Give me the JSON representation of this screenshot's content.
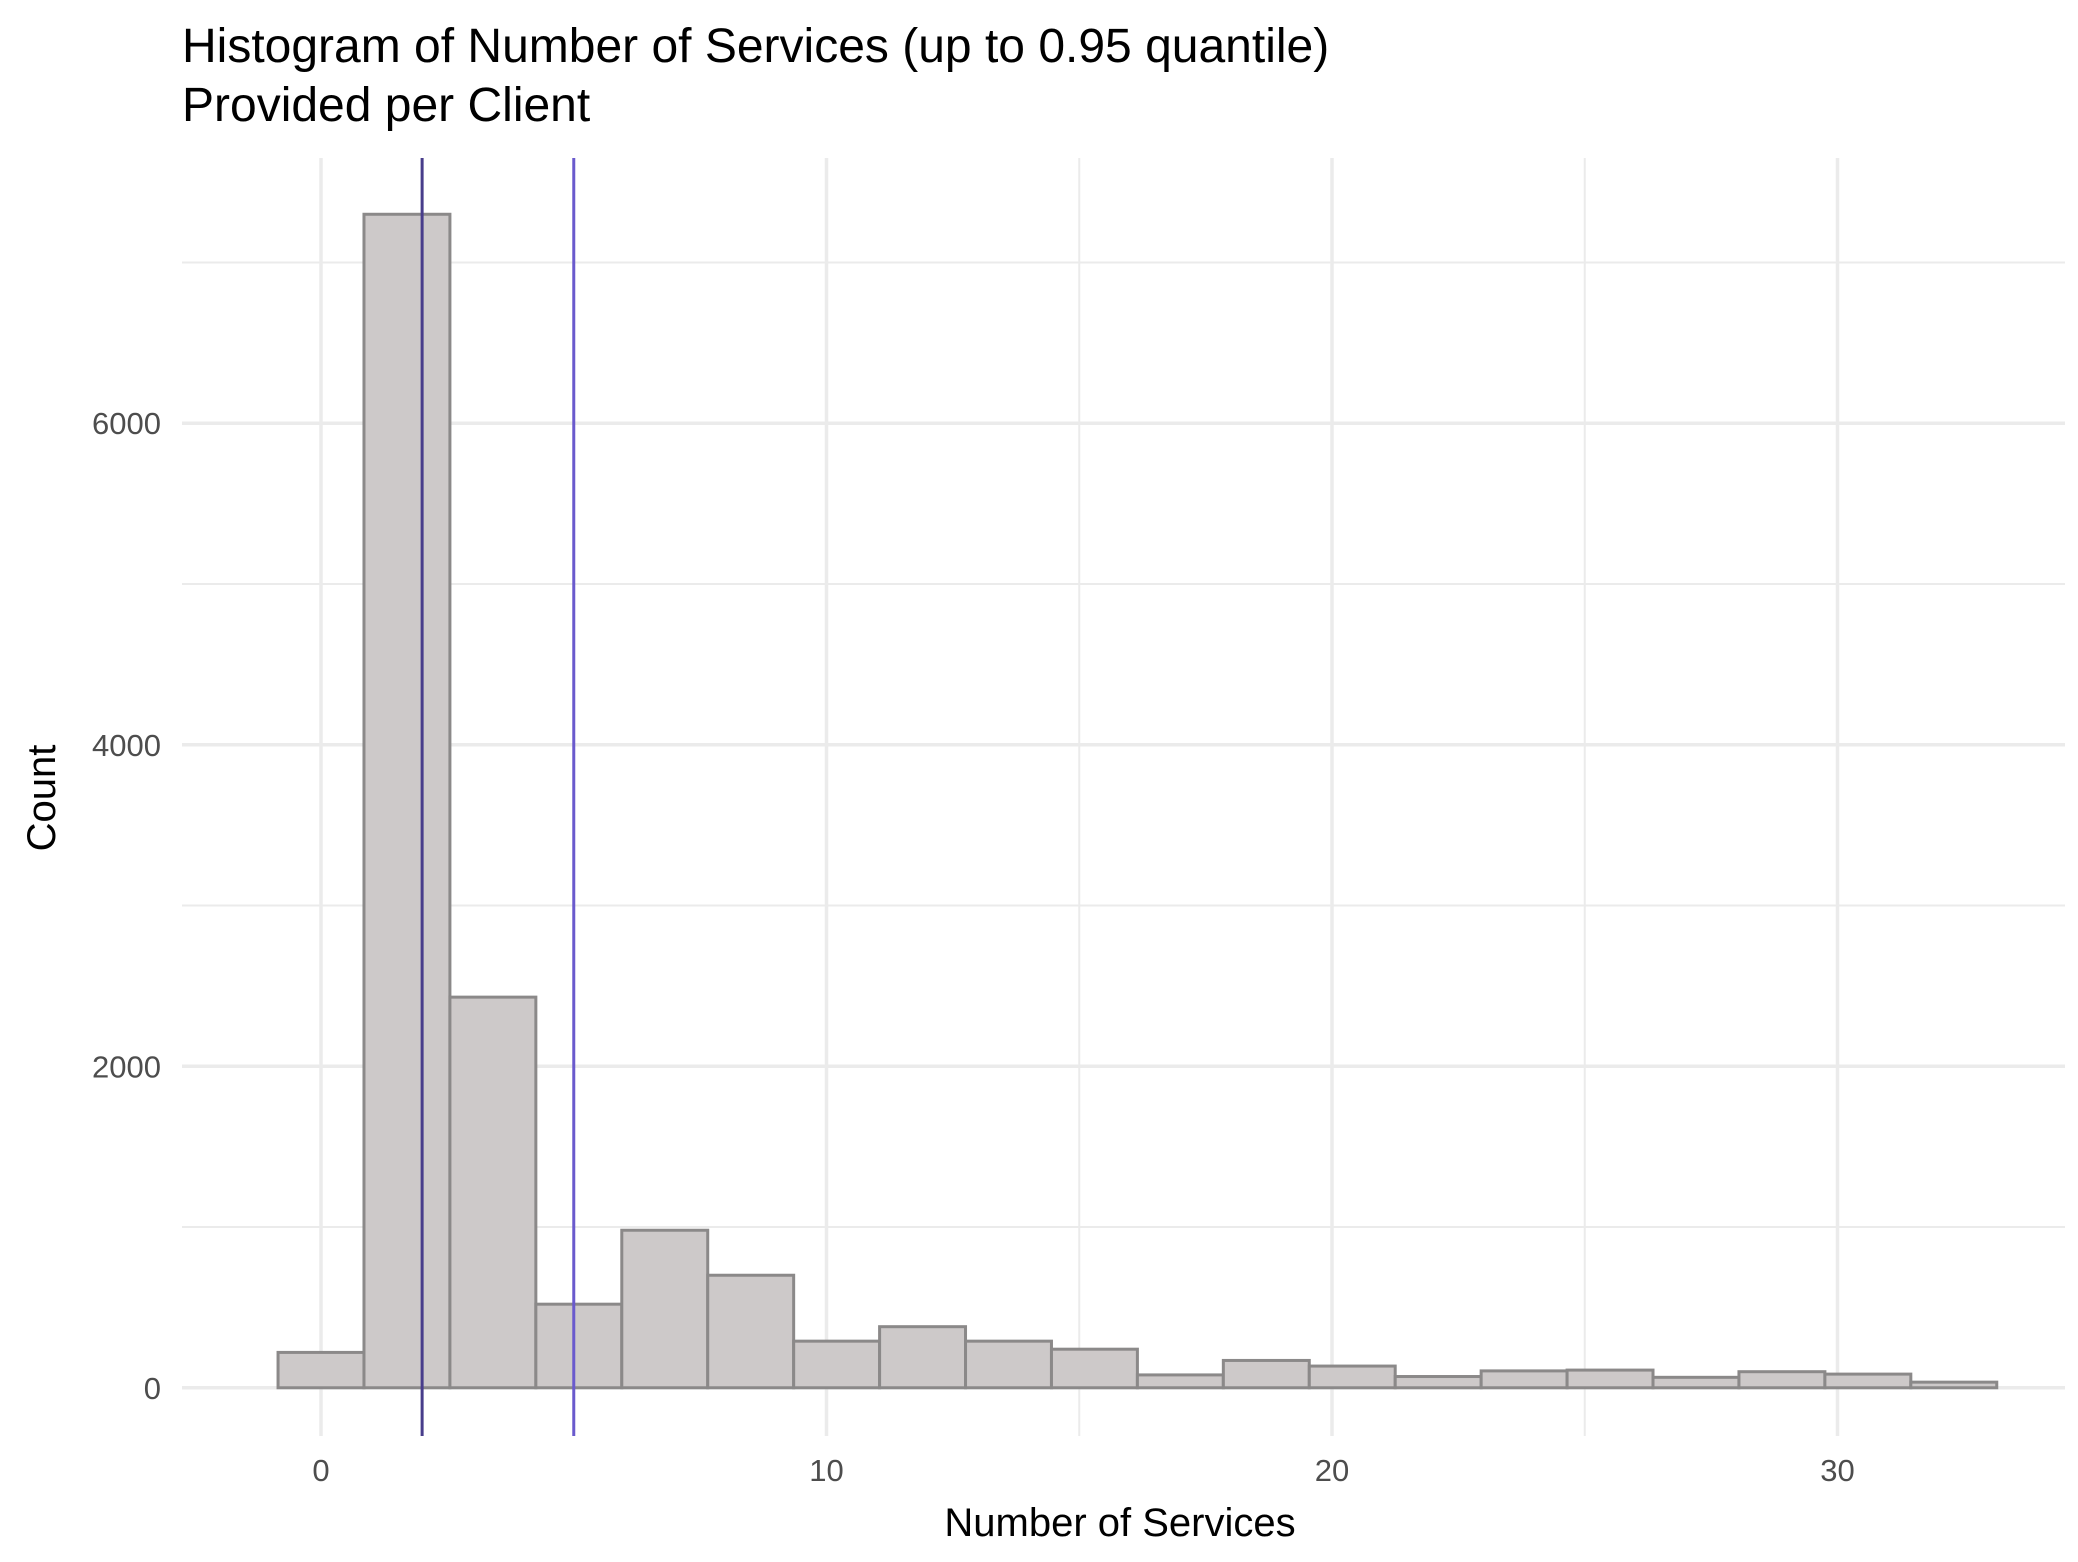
{
  "chart_data": {
    "type": "bar",
    "title": "Histogram of Number of Services (up to 0.95 quantile)",
    "subtitle": "Provided per Client",
    "xlabel": "Number of Services",
    "ylabel": "Count",
    "xlim": [
      -2.75,
      34.5
    ],
    "ylim": [
      -300,
      7650
    ],
    "x_ticks": [
      0,
      10,
      20,
      30
    ],
    "x_tick_labels": [
      "0",
      "10",
      "20",
      "30"
    ],
    "x_minor_ticks": [
      5,
      15,
      25
    ],
    "y_ticks": [
      0,
      2000,
      4000,
      6000
    ],
    "y_tick_labels": [
      "0",
      "2000",
      "4000",
      "6000"
    ],
    "y_minor_ticks": [
      1000,
      3000,
      5000,
      7000
    ],
    "grid": true,
    "bins": [
      {
        "x0": -0.85,
        "x1": 0.85,
        "count": 220
      },
      {
        "x0": 0.85,
        "x1": 2.55,
        "count": 7300
      },
      {
        "x0": 2.55,
        "x1": 4.25,
        "count": 2430
      },
      {
        "x0": 4.25,
        "x1": 5.95,
        "count": 520
      },
      {
        "x0": 5.95,
        "x1": 7.65,
        "count": 980
      },
      {
        "x0": 7.65,
        "x1": 9.35,
        "count": 700
      },
      {
        "x0": 9.35,
        "x1": 11.05,
        "count": 290
      },
      {
        "x0": 11.05,
        "x1": 12.75,
        "count": 380
      },
      {
        "x0": 12.75,
        "x1": 14.45,
        "count": 290
      },
      {
        "x0": 14.45,
        "x1": 16.15,
        "count": 240
      },
      {
        "x0": 16.15,
        "x1": 17.85,
        "count": 80
      },
      {
        "x0": 17.85,
        "x1": 19.55,
        "count": 170
      },
      {
        "x0": 19.55,
        "x1": 21.25,
        "count": 135
      },
      {
        "x0": 21.25,
        "x1": 22.95,
        "count": 70
      },
      {
        "x0": 22.95,
        "x1": 24.65,
        "count": 105
      },
      {
        "x0": 24.65,
        "x1": 26.35,
        "count": 110
      },
      {
        "x0": 26.35,
        "x1": 28.05,
        "count": 65
      },
      {
        "x0": 28.05,
        "x1": 29.75,
        "count": 100
      },
      {
        "x0": 29.75,
        "x1": 31.45,
        "count": 85
      },
      {
        "x0": 31.45,
        "x1": 33.15,
        "count": 35
      }
    ],
    "vlines": [
      {
        "x": 2,
        "color": "#483d8b"
      },
      {
        "x": 5,
        "color": "#6a5acd"
      }
    ],
    "bar_fill": "#cdc9c9",
    "bar_stroke": "#8b8989",
    "grid_color": "#ebebeb"
  }
}
